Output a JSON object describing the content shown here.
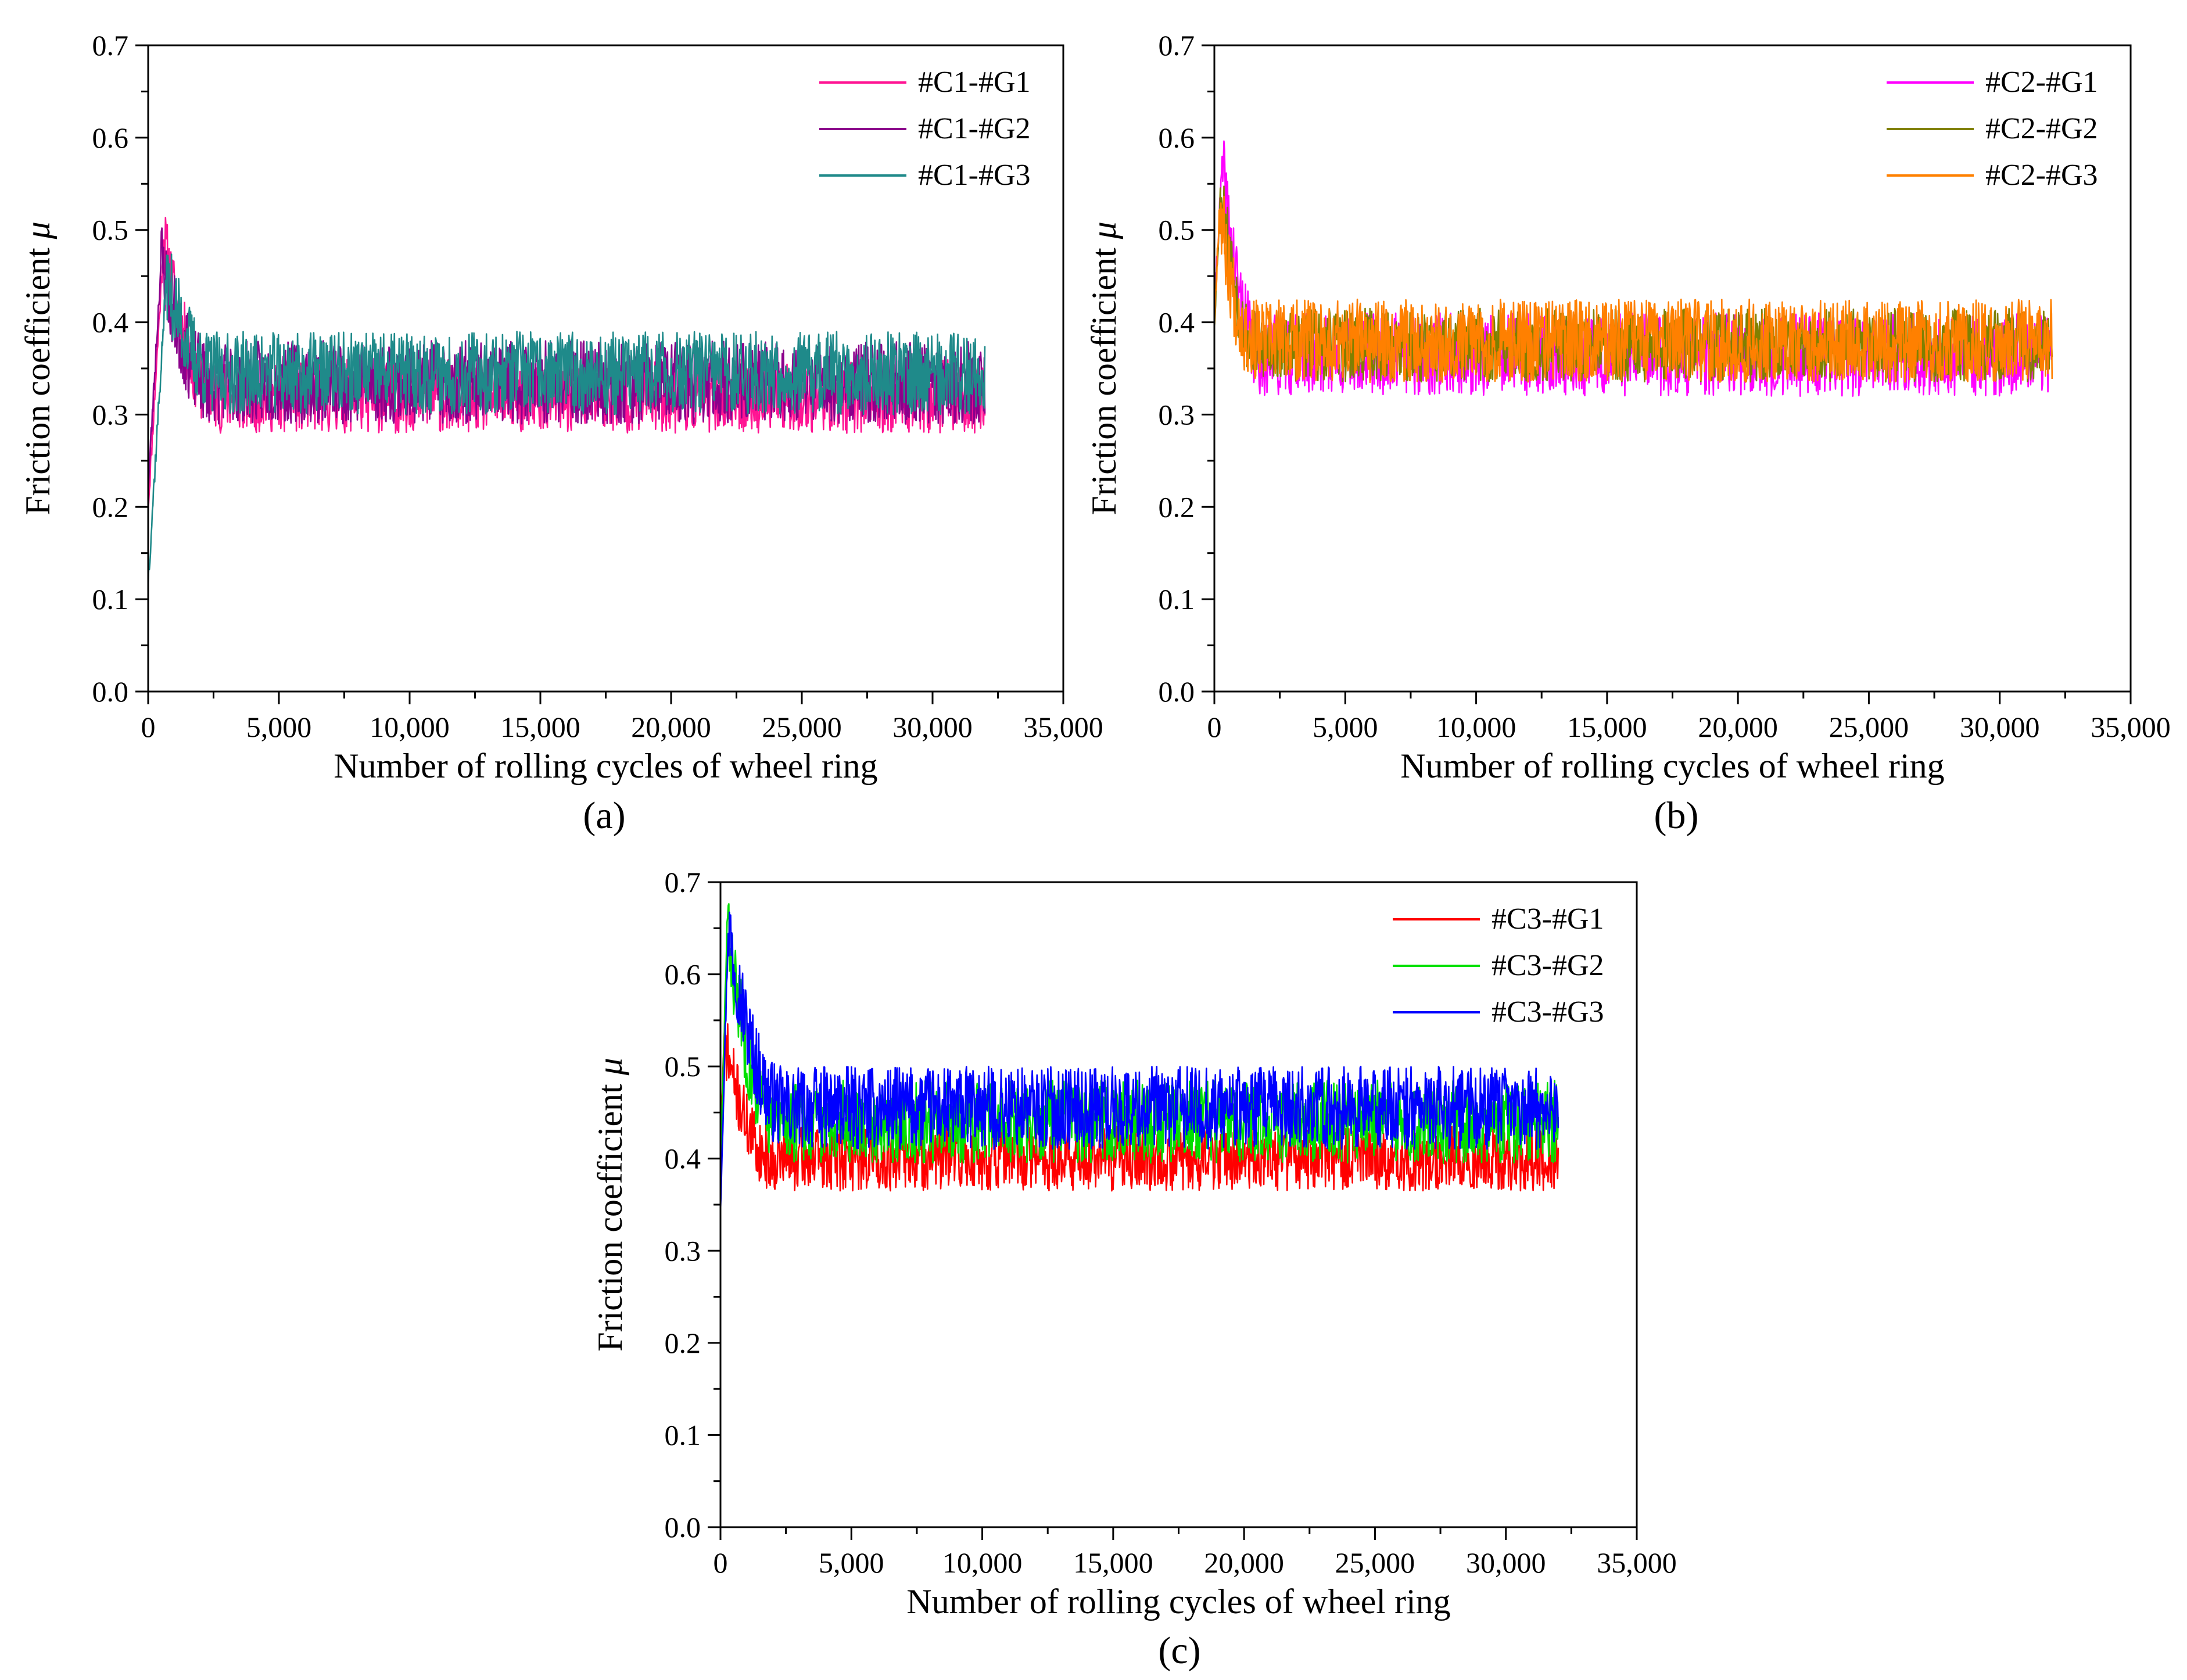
{
  "figure": {
    "panels": [
      "(a)",
      "(b)",
      "(c)"
    ]
  },
  "chart_data": [
    {
      "type": "line",
      "label": "(a)",
      "title": "",
      "xlabel": "Number of rolling cycles of wheel ring",
      "ylabel": "Friction coefficient",
      "ylabel_symbol": "μ",
      "xlim": [
        0,
        35000
      ],
      "ylim": [
        0.0,
        0.7
      ],
      "xticks": [
        0,
        5000,
        10000,
        15000,
        20000,
        25000,
        30000,
        35000
      ],
      "xtick_labels": [
        "0",
        "5,000",
        "10,000",
        "15,000",
        "20,000",
        "25,000",
        "30,000",
        "35,000"
      ],
      "yticks": [
        0.0,
        0.1,
        0.2,
        0.3,
        0.4,
        0.5,
        0.6,
        0.7
      ],
      "ytick_labels": [
        "0.0",
        "0.1",
        "0.2",
        "0.3",
        "0.4",
        "0.5",
        "0.6",
        "0.7"
      ],
      "grid": false,
      "legend_position": "top-right",
      "x_end": 32000,
      "series": [
        {
          "name": "#C1-#G1",
          "color": "#ff1493",
          "start": 0.2,
          "peak": 0.49,
          "peak_x": 600,
          "settle_x": 2600,
          "mean": 0.32,
          "amplitude": 0.04,
          "seed": 11
        },
        {
          "name": "#C1-#G2",
          "color": "#8b008b",
          "start": 0.22,
          "peak": 0.47,
          "peak_x": 500,
          "settle_x": 2400,
          "mean": 0.335,
          "amplitude": 0.045,
          "seed": 23
        },
        {
          "name": "#C1-#G3",
          "color": "#1f8a8a",
          "start": 0.12,
          "peak": 0.45,
          "peak_x": 700,
          "settle_x": 2600,
          "mean": 0.345,
          "amplitude": 0.045,
          "seed": 37
        }
      ]
    },
    {
      "type": "line",
      "label": "(b)",
      "title": "",
      "xlabel": "Number of rolling cycles of wheel ring",
      "ylabel": "Friction coefficient",
      "ylabel_symbol": "μ",
      "xlim": [
        0,
        35000
      ],
      "ylim": [
        0.0,
        0.7
      ],
      "xticks": [
        0,
        5000,
        10000,
        15000,
        20000,
        25000,
        30000,
        35000
      ],
      "xtick_labels": [
        "0",
        "5,000",
        "10,000",
        "15,000",
        "20,000",
        "25,000",
        "30,000",
        "35,000"
      ],
      "yticks": [
        0.0,
        0.1,
        0.2,
        0.3,
        0.4,
        0.5,
        0.6,
        0.7
      ],
      "ytick_labels": [
        "0.0",
        "0.1",
        "0.2",
        "0.3",
        "0.4",
        "0.5",
        "0.6",
        "0.7"
      ],
      "grid": false,
      "legend_position": "top-right",
      "x_end": 32000,
      "series": [
        {
          "name": "#C2-#G1",
          "color": "#ff00ff",
          "start": 0.42,
          "peak": 0.57,
          "peak_x": 300,
          "settle_x": 1800,
          "mean": 0.365,
          "amplitude": 0.045,
          "seed": 41
        },
        {
          "name": "#C2-#G2",
          "color": "#808000",
          "start": 0.4,
          "peak": 0.55,
          "peak_x": 250,
          "settle_x": 1600,
          "mean": 0.375,
          "amplitude": 0.04,
          "seed": 53
        },
        {
          "name": "#C2-#G3",
          "color": "#ff8000",
          "start": 0.4,
          "peak": 0.53,
          "peak_x": 200,
          "settle_x": 1500,
          "mean": 0.38,
          "amplitude": 0.045,
          "seed": 67
        }
      ]
    },
    {
      "type": "line",
      "label": "(c)",
      "title": "",
      "xlabel": "Number of rolling cycles of wheel ring",
      "ylabel": "Friction coefficient",
      "ylabel_symbol": "μ",
      "xlim": [
        0,
        35000
      ],
      "ylim": [
        0.0,
        0.7
      ],
      "xticks": [
        0,
        5000,
        10000,
        15000,
        20000,
        25000,
        30000,
        35000
      ],
      "xtick_labels": [
        "0",
        "5,000",
        "10,000",
        "15,000",
        "20,000",
        "25,000",
        "30,000",
        "35,000"
      ],
      "yticks": [
        0.0,
        0.1,
        0.2,
        0.3,
        0.4,
        0.5,
        0.6,
        0.7
      ],
      "ytick_labels": [
        "0.0",
        "0.1",
        "0.2",
        "0.3",
        "0.4",
        "0.5",
        "0.6",
        "0.7"
      ],
      "grid": false,
      "legend_position": "top-right",
      "x_end": 32000,
      "series": [
        {
          "name": "#C3-#G1",
          "color": "#ff0000",
          "start": 0.43,
          "peak": 0.53,
          "peak_x": 150,
          "settle_x": 2000,
          "mean": 0.4,
          "amplitude": 0.035,
          "seed": 71
        },
        {
          "name": "#C3-#G2",
          "color": "#00e000",
          "start": 0.38,
          "peak": 0.65,
          "peak_x": 250,
          "settle_x": 2200,
          "mean": 0.44,
          "amplitude": 0.045,
          "seed": 83
        },
        {
          "name": "#C3-#G3",
          "color": "#0000ff",
          "start": 0.35,
          "peak": 0.655,
          "peak_x": 300,
          "settle_x": 2400,
          "mean": 0.455,
          "amplitude": 0.045,
          "seed": 97
        }
      ]
    }
  ]
}
